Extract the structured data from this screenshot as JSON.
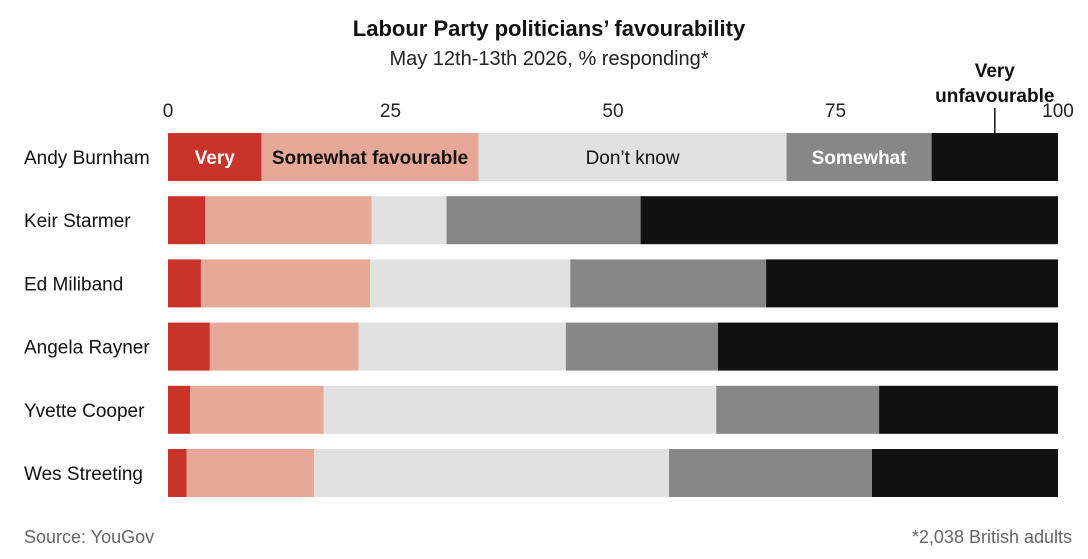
{
  "chart_data": {
    "type": "bar",
    "orientation": "horizontal",
    "stacked": true,
    "title": "Labour Party politicians’ favourability",
    "subtitle": "May 12th-13th 2026, % responding*",
    "xlim": [
      0,
      100
    ],
    "xticks": [
      "0",
      "25",
      "50",
      "75",
      "100"
    ],
    "grid": false,
    "categories": [
      "Andy Burnham",
      "Keir Starmer",
      "Ed Miliband",
      "Angela Rayner",
      "Yvette Cooper",
      "Wes Streeting"
    ],
    "series": [
      {
        "name": "Very favourable",
        "color": "#c8332a",
        "values": [
          10.5,
          4.2,
          3.7,
          4.7,
          2.5,
          2.1
        ]
      },
      {
        "name": "Somewhat favourable",
        "color": "#e8a898",
        "values": [
          24.4,
          18.7,
          19.0,
          16.7,
          15.0,
          14.3
        ]
      },
      {
        "name": "Don’t know",
        "color": "#e1e1e1",
        "values": [
          34.6,
          8.4,
          22.5,
          23.3,
          44.1,
          39.9
        ]
      },
      {
        "name": "Somewhat unfavourable",
        "color": "#878787",
        "values": [
          16.3,
          21.8,
          22.0,
          17.1,
          18.3,
          22.8
        ]
      },
      {
        "name": "Very unfavourable",
        "color": "#111111",
        "values": [
          14.2,
          46.9,
          32.8,
          38.2,
          20.1,
          20.9
        ]
      }
    ],
    "in_bar_labels": [
      "Very",
      "Somewhat favourable",
      "Don’t know",
      "Somewhat"
    ],
    "callout_label": [
      "Very",
      "unfavourable"
    ]
  },
  "source": "Source: YouGov",
  "footnote": "*2,038 British adults"
}
